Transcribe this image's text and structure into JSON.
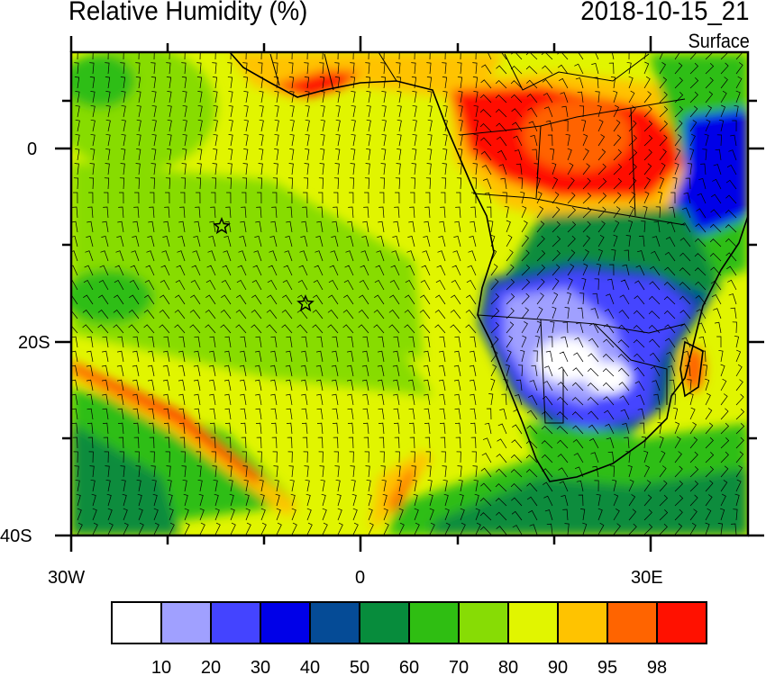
{
  "header": {
    "title": "Relative Humidity (%)",
    "datetime": "2018-10-15_21",
    "level": "Surface"
  },
  "map": {
    "region": "South Atlantic / Southern Africa",
    "lon_range": [
      -30,
      40
    ],
    "lat_range": [
      -40,
      10
    ],
    "lon_labels": [
      {
        "lon": -30,
        "text": "30W"
      },
      {
        "lon": 0,
        "text": "0"
      },
      {
        "lon": 30,
        "text": "30E"
      }
    ],
    "lat_labels": [
      {
        "lat": 0,
        "text": "0"
      },
      {
        "lat": -20,
        "text": "20S"
      },
      {
        "lat": -40,
        "text": "40S"
      }
    ],
    "markers": [
      {
        "type": "star",
        "lon": -14.4,
        "lat": -8
      },
      {
        "type": "star",
        "lon": -5.7,
        "lat": -16
      }
    ]
  },
  "colorbar": {
    "colors": [
      "#ffffff",
      "#a0a0ff",
      "#4444ff",
      "#0000e8",
      "#054b96",
      "#078c3c",
      "#2fbe12",
      "#87dc05",
      "#e1f500",
      "#ffc300",
      "#ff6400",
      "#ff1100"
    ],
    "labels": [
      "10",
      "20",
      "30",
      "40",
      "50",
      "60",
      "70",
      "80",
      "90",
      "95",
      "98"
    ]
  }
}
